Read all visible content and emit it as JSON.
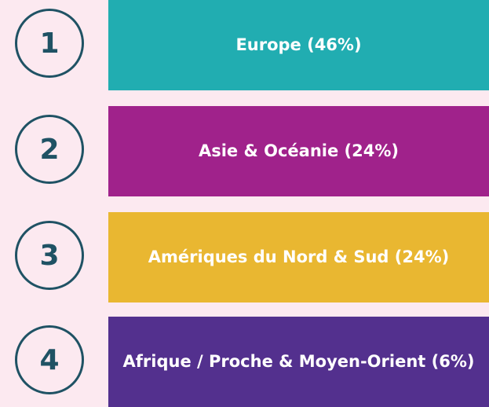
{
  "items": [
    {
      "number": "1",
      "label": "Europe (46%)",
      "color": "#21adb1"
    },
    {
      "number": "2",
      "label": "Asie & Océanie (24%)",
      "color": "#a0228b"
    },
    {
      "number": "3",
      "label": "Amériques du Nord & Sud (24%)",
      "color": "#e9b731"
    },
    {
      "number": "4",
      "label": "Afrique / Proche & Moyen-Orient (6%)",
      "color": "#53308e"
    }
  ]
}
